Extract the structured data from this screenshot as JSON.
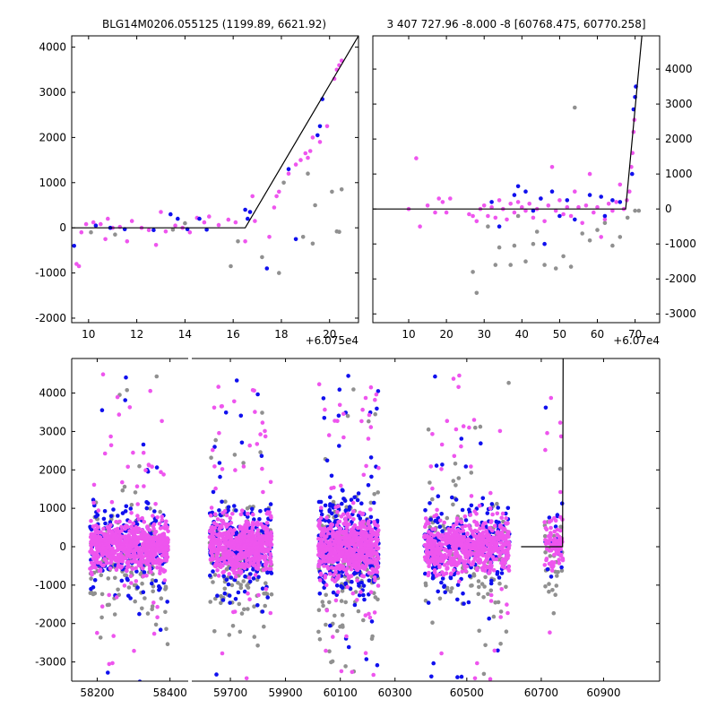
{
  "chart_data": [
    {
      "type": "scatter",
      "panel": "top-left",
      "title": "BLG14M0206.055125 (1199.89, 6621.92)",
      "x_offset_label": "+6.075e4",
      "xlim": [
        9.3,
        21.2
      ],
      "ylim": [
        -2100,
        4250
      ],
      "y_axis_side": "left",
      "xticks": [
        10,
        12,
        14,
        16,
        18,
        20
      ],
      "yticks": [
        -2000,
        -1000,
        0,
        1000,
        2000,
        3000,
        4000
      ],
      "model_line": {
        "x": [
          9.3,
          16.3,
          16.5,
          21.2
        ],
        "y": [
          0,
          0,
          0,
          4250
        ]
      },
      "series": [
        {
          "color": "#ee55ee",
          "points": [
            [
              9.6,
              -850
            ],
            [
              9.5,
              -800
            ],
            [
              9.7,
              -100
            ],
            [
              9.9,
              80
            ],
            [
              10.2,
              120
            ],
            [
              10.5,
              80
            ],
            [
              10.7,
              -250
            ],
            [
              10.8,
              200
            ],
            [
              11.0,
              0
            ],
            [
              11.3,
              20
            ],
            [
              11.6,
              -300
            ],
            [
              11.8,
              150
            ],
            [
              12.2,
              0
            ],
            [
              12.5,
              -50
            ],
            [
              12.8,
              -380
            ],
            [
              13.0,
              350
            ],
            [
              13.2,
              -80
            ],
            [
              13.6,
              50
            ],
            [
              13.9,
              0
            ],
            [
              14.2,
              -100
            ],
            [
              14.5,
              220
            ],
            [
              14.8,
              120
            ],
            [
              15.0,
              250
            ],
            [
              15.4,
              60
            ],
            [
              15.8,
              180
            ],
            [
              16.1,
              120
            ],
            [
              16.5,
              -300
            ],
            [
              16.7,
              350
            ],
            [
              16.8,
              700
            ],
            [
              16.9,
              150
            ],
            [
              17.5,
              -200
            ],
            [
              17.7,
              450
            ],
            [
              17.8,
              700
            ],
            [
              17.9,
              800
            ],
            [
              18.3,
              1200
            ],
            [
              18.6,
              1400
            ],
            [
              18.8,
              1500
            ],
            [
              19.0,
              1650
            ],
            [
              19.1,
              1550
            ],
            [
              19.2,
              1700
            ],
            [
              19.3,
              2000
            ],
            [
              19.6,
              1900
            ],
            [
              19.9,
              2250
            ],
            [
              20.2,
              3300
            ],
            [
              20.3,
              3500
            ],
            [
              20.5,
              3700
            ],
            [
              20.4,
              3600
            ]
          ]
        },
        {
          "color": "#1010ee",
          "points": [
            [
              9.4,
              -400
            ],
            [
              10.3,
              50
            ],
            [
              10.9,
              0
            ],
            [
              11.5,
              -30
            ],
            [
              12.7,
              -50
            ],
            [
              13.4,
              300
            ],
            [
              13.7,
              200
            ],
            [
              14.1,
              -30
            ],
            [
              14.6,
              200
            ],
            [
              14.9,
              -40
            ],
            [
              16.5,
              400
            ],
            [
              16.6,
              200
            ],
            [
              16.7,
              350
            ],
            [
              17.4,
              -900
            ],
            [
              18.3,
              1300
            ],
            [
              18.6,
              -250
            ],
            [
              19.5,
              2050
            ],
            [
              19.6,
              2250
            ],
            [
              19.7,
              2850
            ]
          ]
        },
        {
          "color": "#909090",
          "points": [
            [
              10.1,
              -100
            ],
            [
              11.1,
              -150
            ],
            [
              13.5,
              -40
            ],
            [
              14.0,
              100
            ],
            [
              15.9,
              -850
            ],
            [
              16.2,
              -300
            ],
            [
              17.2,
              -650
            ],
            [
              17.9,
              -1000
            ],
            [
              18.1,
              1000
            ],
            [
              18.9,
              -200
            ],
            [
              19.1,
              1200
            ],
            [
              19.3,
              -350
            ],
            [
              19.4,
              500
            ],
            [
              20.1,
              800
            ],
            [
              20.3,
              -80
            ],
            [
              20.4,
              -90
            ],
            [
              20.5,
              850
            ]
          ]
        }
      ]
    },
    {
      "type": "scatter",
      "panel": "top-right",
      "title": "3 407 727.96 -8.000 -8 [60768.475, 60770.258]",
      "x_offset_label": "+6.07e4",
      "xlim": [
        0.5,
        76.5
      ],
      "ylim": [
        -3250,
        4950
      ],
      "y_axis_side": "right",
      "xticks": [
        10,
        20,
        30,
        40,
        50,
        60,
        70
      ],
      "yticks": [
        -3000,
        -2000,
        -1000,
        0,
        1000,
        2000,
        3000,
        4000
      ],
      "model_line": {
        "x": [
          0.5,
          67.0,
          67.5,
          71.8
        ],
        "y": [
          0,
          0,
          0,
          4950
        ]
      },
      "series": [
        {
          "color": "#ee55ee",
          "points": [
            [
              10,
              0
            ],
            [
              12,
              1450
            ],
            [
              13,
              -500
            ],
            [
              15,
              100
            ],
            [
              17,
              -100
            ],
            [
              18,
              300
            ],
            [
              19,
              200
            ],
            [
              20,
              -100
            ],
            [
              21,
              300
            ],
            [
              26,
              -150
            ],
            [
              27,
              -200
            ],
            [
              28,
              -350
            ],
            [
              29,
              0
            ],
            [
              30,
              100
            ],
            [
              31,
              -200
            ],
            [
              32,
              50
            ],
            [
              33,
              -250
            ],
            [
              34,
              250
            ],
            [
              35,
              0
            ],
            [
              36,
              -300
            ],
            [
              37,
              150
            ],
            [
              38,
              -100
            ],
            [
              39,
              200
            ],
            [
              40,
              50
            ],
            [
              41,
              -50
            ],
            [
              42,
              150
            ],
            [
              43,
              -250
            ],
            [
              44,
              0
            ],
            [
              45,
              300
            ],
            [
              46,
              -350
            ],
            [
              47,
              100
            ],
            [
              48,
              1200
            ],
            [
              49,
              -50
            ],
            [
              50,
              250
            ],
            [
              51,
              -150
            ],
            [
              52,
              50
            ],
            [
              53,
              -200
            ],
            [
              54,
              500
            ],
            [
              55,
              50
            ],
            [
              56,
              -400
            ],
            [
              57,
              100
            ],
            [
              58,
              1000
            ],
            [
              59,
              -100
            ],
            [
              60,
              50
            ],
            [
              61,
              -800
            ],
            [
              62,
              -300
            ],
            [
              63,
              150
            ],
            [
              64,
              -50
            ],
            [
              65,
              200
            ],
            [
              66,
              700
            ],
            [
              67,
              0
            ],
            [
              67.8,
              250
            ],
            [
              68.5,
              500
            ],
            [
              69.0,
              1200
            ],
            [
              69.3,
              1600
            ],
            [
              69.6,
              2200
            ],
            [
              69.8,
              2550
            ]
          ]
        },
        {
          "color": "#1010ee",
          "points": [
            [
              32,
              200
            ],
            [
              34,
              -500
            ],
            [
              38,
              400
            ],
            [
              39,
              650
            ],
            [
              41,
              500
            ],
            [
              43,
              -50
            ],
            [
              45,
              300
            ],
            [
              46,
              -1000
            ],
            [
              48,
              500
            ],
            [
              50,
              -200
            ],
            [
              52,
              250
            ],
            [
              54,
              -300
            ],
            [
              58,
              400
            ],
            [
              61,
              350
            ],
            [
              62,
              -200
            ],
            [
              64,
              250
            ],
            [
              66,
              200
            ],
            [
              69.2,
              1000
            ],
            [
              69.6,
              2850
            ],
            [
              70.0,
              3200
            ],
            [
              70.2,
              3500
            ]
          ]
        },
        {
          "color": "#909090",
          "points": [
            [
              27,
              -1800
            ],
            [
              28,
              -2400
            ],
            [
              31,
              -500
            ],
            [
              33,
              -1600
            ],
            [
              34,
              -1100
            ],
            [
              37,
              -1600
            ],
            [
              38,
              -1050
            ],
            [
              39,
              -200
            ],
            [
              41,
              -1500
            ],
            [
              43,
              -1000
            ],
            [
              44,
              -650
            ],
            [
              46,
              -1600
            ],
            [
              49,
              -1700
            ],
            [
              51,
              -1350
            ],
            [
              53,
              -1650
            ],
            [
              54,
              2900
            ],
            [
              56,
              -700
            ],
            [
              58,
              -900
            ],
            [
              60,
              -600
            ],
            [
              62,
              -400
            ],
            [
              64,
              -1050
            ],
            [
              66,
              -800
            ],
            [
              68,
              -250
            ],
            [
              70,
              -50
            ],
            [
              71,
              -50
            ]
          ]
        }
      ]
    },
    {
      "type": "scatter",
      "panel": "bottom",
      "title": "",
      "xlim": [
        58130,
        61080
      ],
      "ylim": [
        -3500,
        4900
      ],
      "y_axis_side": "left",
      "xticks": [
        58200,
        58400,
        59700,
        59900,
        60100,
        60300,
        60500,
        60700,
        60900
      ],
      "yticks": [
        -3000,
        -2000,
        -1000,
        0,
        1000,
        2000,
        3000,
        4000
      ],
      "model_line": {
        "x": [
          60640,
          60768.5,
          60768.5,
          60770.3,
          60770.3
        ],
        "y": [
          0,
          0,
          0,
          4900,
          4900
        ]
      },
      "seasons": [
        {
          "x": [
            58180,
            58395
          ],
          "counts": {
            "pink": 700,
            "blue": 200,
            "grey": 130
          },
          "spread": 350,
          "tail": 0.06
        },
        {
          "x": [
            59625,
            59850
          ],
          "counts": {
            "pink": 600,
            "blue": 240,
            "grey": 150
          },
          "spread": 380,
          "tail": 0.06
        },
        {
          "x": [
            60020,
            60240
          ],
          "counts": {
            "pink": 650,
            "blue": 300,
            "grey": 160
          },
          "spread": 420,
          "tail": 0.07
        },
        {
          "x": [
            60390,
            60610
          ],
          "counts": {
            "pink": 600,
            "blue": 250,
            "grey": 140
          },
          "spread": 380,
          "tail": 0.06
        },
        {
          "x": [
            60710,
            60770
          ],
          "counts": {
            "pink": 90,
            "blue": 20,
            "grey": 30
          },
          "spread": 300,
          "tail": 0.08
        }
      ],
      "colors": {
        "pink": "#ee55ee",
        "blue": "#1010ee",
        "grey": "#909090",
        "line": "#000000"
      }
    }
  ]
}
